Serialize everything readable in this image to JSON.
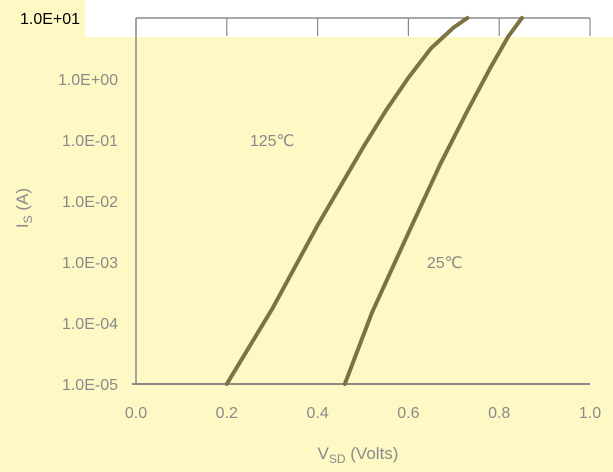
{
  "chart_data": {
    "type": "line",
    "title": "",
    "xlabel": "V",
    "xlabel_sub": "SD",
    "xlabel_rest": " (Volts)",
    "ylabel": "I",
    "ylabel_sub": "S",
    "ylabel_rest": " (A)",
    "xlim": [
      0.0,
      1.0
    ],
    "ylim": [
      1e-05,
      10
    ],
    "yscale": "log",
    "x_ticks": [
      "0.0",
      "0.2",
      "0.4",
      "0.6",
      "0.8",
      "1.0"
    ],
    "y_ticks": [
      "1.0E-05",
      "1.0E-04",
      "1.0E-03",
      "1.0E-02",
      "1.0E-01",
      "1.0E+00",
      "1.0E+01"
    ],
    "series": [
      {
        "x": [
          0.2,
          0.3,
          0.4,
          0.5,
          0.55,
          0.6,
          0.65,
          0.7,
          0.73
        ],
        "y": [
          1e-05,
          0.00017,
          0.004,
          0.075,
          0.3,
          1.05,
          3.2,
          7.0,
          10.0
        ]
      },
      {
        "x": [
          0.46,
          0.52,
          0.6,
          0.67,
          0.73,
          0.78,
          0.82,
          0.85
        ],
        "y": [
          1e-05,
          0.00015,
          0.003,
          0.04,
          0.3,
          1.5,
          5.0,
          10.0
        ]
      }
    ],
    "annotations": [
      {
        "text": "125℃",
        "x": 0.3,
        "y": 0.1
      },
      {
        "text": "25℃",
        "x": 0.68,
        "y": 0.001
      }
    ],
    "colors": {
      "background": "#fdf8c4",
      "line": "#7b7441",
      "axis": "#8a8a8a"
    }
  }
}
